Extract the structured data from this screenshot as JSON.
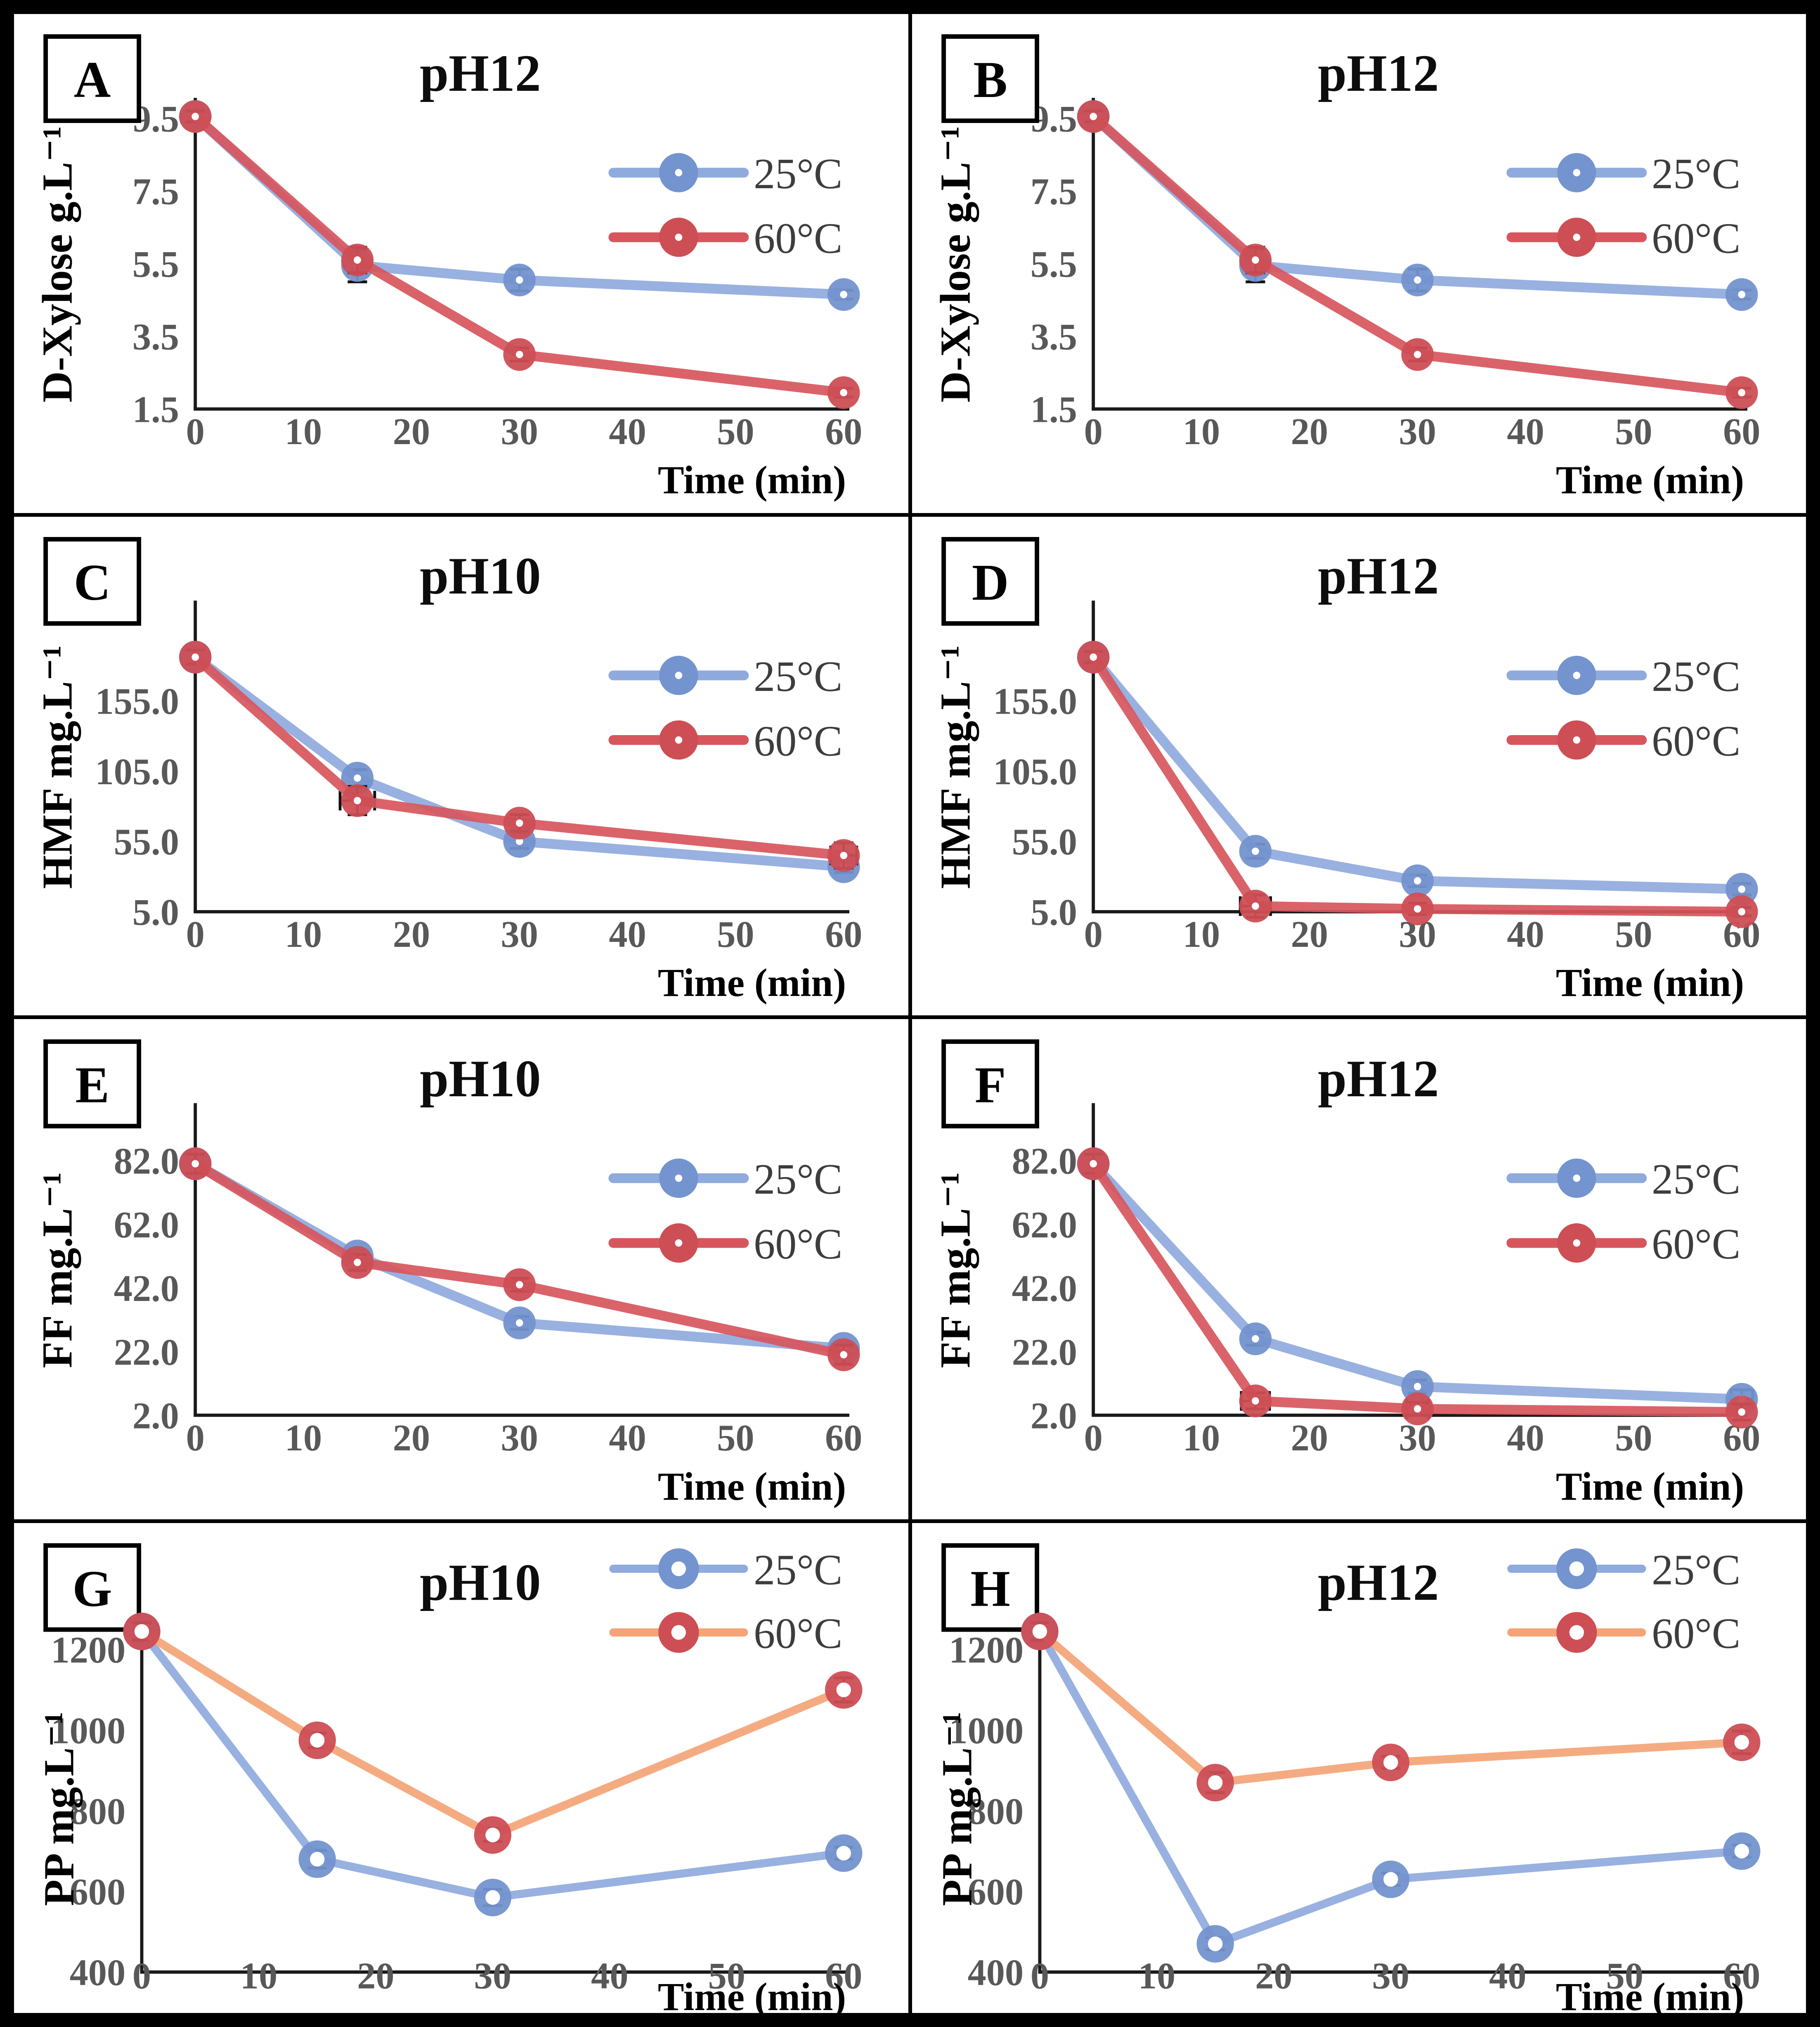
{
  "figure": {
    "panel_letters": [
      "A",
      "B",
      "C",
      "D",
      "E",
      "F",
      "G",
      "H"
    ],
    "colors": {
      "blue_marker": "#7494CF",
      "blue_line": "#8FAADD",
      "red_marker": "#CE4E55",
      "red_line": "#D7565D",
      "orange_line": "#F4A476",
      "axis": "#1a1a1a",
      "tick_text": "#585858",
      "legend_text": "#3d3d3d"
    }
  },
  "chart_data": [
    {
      "panel": "A",
      "type": "line",
      "title": "pH12",
      "xlabel": "Time (min)",
      "ylabel": "D-Xylose g.L⁻¹",
      "x": [
        0,
        15,
        30,
        60
      ],
      "series": [
        {
          "name": "25°C",
          "marker_color": "#7494CF",
          "line_color": "#8FAADD",
          "values": [
            9.55,
            5.45,
            5.05,
            4.65
          ],
          "errors": [
            0.12,
            0.45,
            0.3,
            0.12
          ]
        },
        {
          "name": "60°C",
          "marker_color": "#CE4E55",
          "line_color": "#D7565D",
          "values": [
            9.55,
            5.6,
            3.0,
            1.95
          ],
          "errors": [
            0.15,
            0.35,
            0.18,
            0.12
          ]
        }
      ],
      "yticks": [
        9.5,
        7.5,
        5.5,
        3.5,
        1.5
      ],
      "ytick_labels": [
        "9.5",
        "7.5",
        "5.5",
        "3.5",
        "1.5"
      ],
      "xticks": [
        0,
        10,
        20,
        30,
        40,
        50,
        60
      ],
      "xtick_labels": [
        "0",
        "10",
        "20",
        "30",
        "40",
        "50",
        "60"
      ],
      "ylim": [
        1.5,
        9.5
      ],
      "xlim": [
        0,
        60
      ],
      "legend_position": "inset-right",
      "marker_style": "dot",
      "grid": false
    },
    {
      "panel": "B",
      "type": "line",
      "title": "pH12",
      "xlabel": "Time (min)",
      "ylabel": "D-Xylose g.L⁻¹",
      "x": [
        0,
        15,
        30,
        60
      ],
      "series": [
        {
          "name": "25°C",
          "marker_color": "#7494CF",
          "line_color": "#8FAADD",
          "values": [
            9.55,
            5.45,
            5.05,
            4.65
          ],
          "errors": [
            0.12,
            0.45,
            0.3,
            0.12
          ]
        },
        {
          "name": "60°C",
          "marker_color": "#CE4E55",
          "line_color": "#D7565D",
          "values": [
            9.55,
            5.6,
            3.0,
            1.95
          ],
          "errors": [
            0.15,
            0.35,
            0.18,
            0.12
          ]
        }
      ],
      "yticks": [
        9.5,
        7.5,
        5.5,
        3.5,
        1.5
      ],
      "ytick_labels": [
        "9.5",
        "7.5",
        "5.5",
        "3.5",
        "1.5"
      ],
      "xticks": [
        0,
        10,
        20,
        30,
        40,
        50,
        60
      ],
      "xtick_labels": [
        "0",
        "10",
        "20",
        "30",
        "40",
        "50",
        "60"
      ],
      "ylim": [
        1.5,
        9.5
      ],
      "xlim": [
        0,
        60
      ],
      "legend_position": "inset-right",
      "marker_style": "dot",
      "grid": false
    },
    {
      "panel": "C",
      "type": "line",
      "title": "pH10",
      "xlabel": "Time (min)",
      "ylabel": "HMF mg.L⁻¹",
      "x": [
        0,
        15,
        30,
        60
      ],
      "series": [
        {
          "name": "25°C",
          "marker_color": "#7494CF",
          "line_color": "#8FAADD",
          "values": [
            186,
            100,
            55,
            37
          ],
          "errors": [
            5,
            6,
            5,
            4
          ]
        },
        {
          "name": "60°C",
          "marker_color": "#CE4E55",
          "line_color": "#D7565D",
          "values": [
            186,
            84,
            68,
            45
          ],
          "errors": [
            5,
            10,
            6,
            9
          ],
          "xerrors": [
            0,
            1.6,
            0,
            1.2
          ]
        }
      ],
      "yticks": [
        155.0,
        105.0,
        55.0,
        5.0
      ],
      "ytick_labels": [
        "155.0",
        "105.0",
        "55.0",
        "5.0"
      ],
      "xticks": [
        0,
        10,
        20,
        30,
        40,
        50,
        60
      ],
      "xtick_labels": [
        "0",
        "10",
        "20",
        "30",
        "40",
        "50",
        "60"
      ],
      "ylim": [
        5.0,
        205.0
      ],
      "xlim": [
        0,
        60
      ],
      "legend_position": "inset-right",
      "marker_style": "dot",
      "grid": false
    },
    {
      "panel": "D",
      "type": "line",
      "title": "pH12",
      "xlabel": "Time (min)",
      "ylabel": "HMF mg.L⁻¹",
      "x": [
        0,
        15,
        30,
        60
      ],
      "series": [
        {
          "name": "25°C",
          "marker_color": "#7494CF",
          "line_color": "#8FAADD",
          "values": [
            186,
            48,
            27,
            21
          ],
          "errors": [
            5,
            5,
            4,
            4
          ]
        },
        {
          "name": "60°C",
          "marker_color": "#CE4E55",
          "line_color": "#D7565D",
          "values": [
            186,
            9,
            7,
            5
          ],
          "errors": [
            4,
            8,
            4,
            3
          ],
          "xerrors": [
            0,
            1.4,
            0,
            0
          ]
        }
      ],
      "yticks": [
        155.0,
        105.0,
        55.0,
        5.0
      ],
      "ytick_labels": [
        "155.0",
        "105.0",
        "55.0",
        "5.0"
      ],
      "xticks": [
        0,
        10,
        20,
        30,
        40,
        50,
        60
      ],
      "xtick_labels": [
        "0",
        "10",
        "20",
        "30",
        "40",
        "50",
        "60"
      ],
      "ylim": [
        5.0,
        205.0
      ],
      "xlim": [
        0,
        60
      ],
      "legend_position": "inset-right",
      "marker_style": "dot",
      "grid": false
    },
    {
      "panel": "E",
      "type": "line",
      "title": "pH10",
      "xlabel": "Time (min)",
      "ylabel": "FF mg.L⁻¹",
      "x": [
        0,
        15,
        30,
        60
      ],
      "series": [
        {
          "name": "25°C",
          "marker_color": "#7494CF",
          "line_color": "#8FAADD",
          "values": [
            81,
            52,
            31,
            23
          ],
          "errors": [
            3,
            2,
            2,
            2
          ]
        },
        {
          "name": "60°C",
          "marker_color": "#CE4E55",
          "line_color": "#D7565D",
          "values": [
            81,
            50,
            43,
            21
          ],
          "errors": [
            3,
            2.5,
            2,
            3
          ]
        }
      ],
      "yticks": [
        82.0,
        62.0,
        42.0,
        22.0,
        2.0
      ],
      "ytick_labels": [
        "82.0",
        "62.0",
        "42.0",
        "22.0",
        "2.0"
      ],
      "xticks": [
        0,
        10,
        20,
        30,
        40,
        50,
        60
      ],
      "xtick_labels": [
        "0",
        "10",
        "20",
        "30",
        "40",
        "50",
        "60"
      ],
      "ylim": [
        2.0,
        82.0
      ],
      "xlim": [
        0,
        60
      ],
      "legend_position": "inset-right",
      "marker_style": "dot",
      "grid": false
    },
    {
      "panel": "F",
      "type": "line",
      "title": "pH12",
      "xlabel": "Time (min)",
      "ylabel": "FF mg.L⁻¹",
      "x": [
        0,
        15,
        30,
        60
      ],
      "series": [
        {
          "name": "25°C",
          "marker_color": "#7494CF",
          "line_color": "#8FAADD",
          "values": [
            81,
            26,
            11,
            7
          ],
          "errors": [
            3,
            2,
            2,
            3
          ],
          "xerrors": [
            0,
            0,
            0,
            1.0
          ]
        },
        {
          "name": "60°C",
          "marker_color": "#CE4E55",
          "line_color": "#D7565D",
          "values": [
            81,
            6.5,
            4,
            3
          ],
          "errors": [
            3,
            2.5,
            2,
            2.5
          ],
          "xerrors": [
            0,
            1.3,
            1.0,
            0
          ]
        }
      ],
      "yticks": [
        82.0,
        62.0,
        42.0,
        22.0,
        2.0
      ],
      "ytick_labels": [
        "82.0",
        "62.0",
        "42.0",
        "22.0",
        "2.0"
      ],
      "xticks": [
        0,
        10,
        20,
        30,
        40,
        50,
        60
      ],
      "xtick_labels": [
        "0",
        "10",
        "20",
        "30",
        "40",
        "50",
        "60"
      ],
      "ylim": [
        2.0,
        82.0
      ],
      "xlim": [
        0,
        60
      ],
      "legend_position": "inset-right",
      "marker_style": "dot",
      "grid": false
    },
    {
      "panel": "G",
      "type": "line",
      "title": "pH10",
      "xlabel": "Time (min)",
      "ylabel": "PP mg.L⁻¹",
      "x": [
        0,
        15,
        30,
        60
      ],
      "series": [
        {
          "name": "25°C",
          "marker_color": "#7494CF",
          "line_color": "#8FAADD",
          "values": [
            1245,
            680,
            585,
            695
          ],
          "errors": [
            25,
            22,
            20,
            15
          ]
        },
        {
          "name": "60°C",
          "marker_color": "#CE4E55",
          "line_color": "#F4A476",
          "values": [
            1245,
            975,
            740,
            1100
          ],
          "errors": [
            22,
            18,
            16,
            30
          ]
        }
      ],
      "yticks": [
        1200,
        1000,
        800,
        600,
        400
      ],
      "ytick_labels": [
        "1200",
        "1000",
        "800",
        "600",
        "400"
      ],
      "xticks": [
        0,
        10,
        20,
        30,
        40,
        50,
        60
      ],
      "xtick_labels": [
        "0",
        "10",
        "20",
        "30",
        "40",
        "50",
        "60"
      ],
      "ylim": [
        400,
        1200
      ],
      "xlim": [
        0,
        60
      ],
      "legend_position": "top-right",
      "marker_style": "ring",
      "grid": false
    },
    {
      "panel": "H",
      "type": "line",
      "title": "pH12",
      "xlabel": "Time (min)",
      "ylabel": "PP mg.L⁻¹",
      "x": [
        0,
        15,
        30,
        60
      ],
      "series": [
        {
          "name": "25°C",
          "marker_color": "#7494CF",
          "line_color": "#8FAADD",
          "values": [
            1245,
            470,
            630,
            700
          ],
          "errors": [
            25,
            15,
            15,
            15
          ]
        },
        {
          "name": "60°C",
          "marker_color": "#CE4E55",
          "line_color": "#F4A476",
          "values": [
            1245,
            870,
            920,
            970
          ],
          "errors": [
            22,
            25,
            15,
            28
          ]
        }
      ],
      "yticks": [
        1200,
        1000,
        800,
        600,
        400
      ],
      "ytick_labels": [
        "1200",
        "1000",
        "800",
        "600",
        "400"
      ],
      "xticks": [
        0,
        10,
        20,
        30,
        40,
        50,
        60
      ],
      "xtick_labels": [
        "0",
        "10",
        "20",
        "30",
        "40",
        "50",
        "60"
      ],
      "ylim": [
        400,
        1200
      ],
      "xlim": [
        0,
        60
      ],
      "legend_position": "top-right",
      "marker_style": "ring",
      "grid": false
    }
  ]
}
